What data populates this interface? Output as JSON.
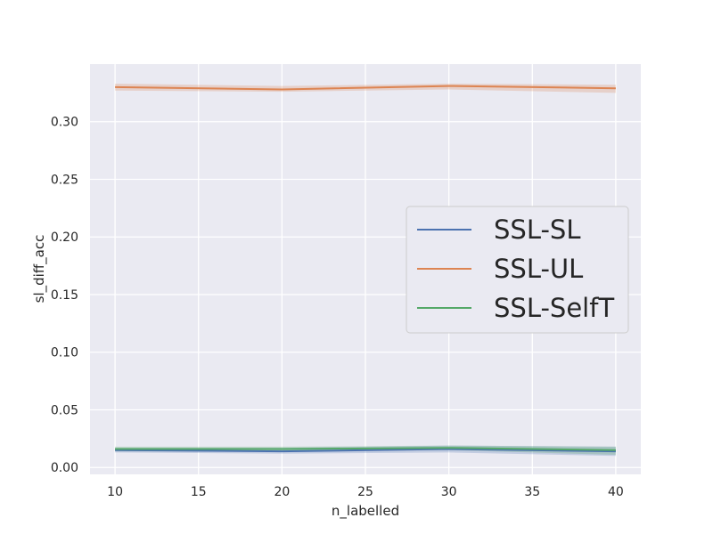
{
  "chart_data": {
    "type": "line",
    "x": [
      10,
      20,
      30,
      40
    ],
    "series": [
      {
        "name": "SSL-SL",
        "color": "#4c72b0",
        "values": [
          0.015,
          0.014,
          0.016,
          0.014
        ],
        "band_low": [
          0.013,
          0.012,
          0.013,
          0.01
        ],
        "band_high": [
          0.017,
          0.017,
          0.019,
          0.018
        ]
      },
      {
        "name": "SSL-UL",
        "color": "#dd8452",
        "values": [
          0.33,
          0.328,
          0.331,
          0.329
        ],
        "band_low": [
          0.327,
          0.326,
          0.328,
          0.325
        ],
        "band_high": [
          0.333,
          0.331,
          0.333,
          0.332
        ]
      },
      {
        "name": "SSL-SelfT",
        "color": "#55a868",
        "values": [
          0.016,
          0.016,
          0.017,
          0.015
        ],
        "band_low": [
          0.014,
          0.014,
          0.015,
          0.011
        ],
        "band_high": [
          0.018,
          0.018,
          0.019,
          0.018
        ]
      }
    ],
    "xlabel": "n_labelled",
    "ylabel": "sl_diff_acc",
    "xlim": [
      8.5,
      41.5
    ],
    "ylim": [
      -0.006,
      0.35
    ],
    "xticks": [
      10,
      15,
      20,
      25,
      30,
      35,
      40
    ],
    "xtick_labels": [
      "10",
      "15",
      "20",
      "25",
      "30",
      "35",
      "40"
    ],
    "yticks": [
      0.0,
      0.05,
      0.1,
      0.15,
      0.2,
      0.25,
      0.3
    ],
    "ytick_labels": [
      "0.00",
      "0.05",
      "0.10",
      "0.15",
      "0.20",
      "0.25",
      "0.30"
    ],
    "grid": true,
    "legend_placement": "center-right",
    "background": "#eaeaf2",
    "grid_color": "#ffffff"
  }
}
